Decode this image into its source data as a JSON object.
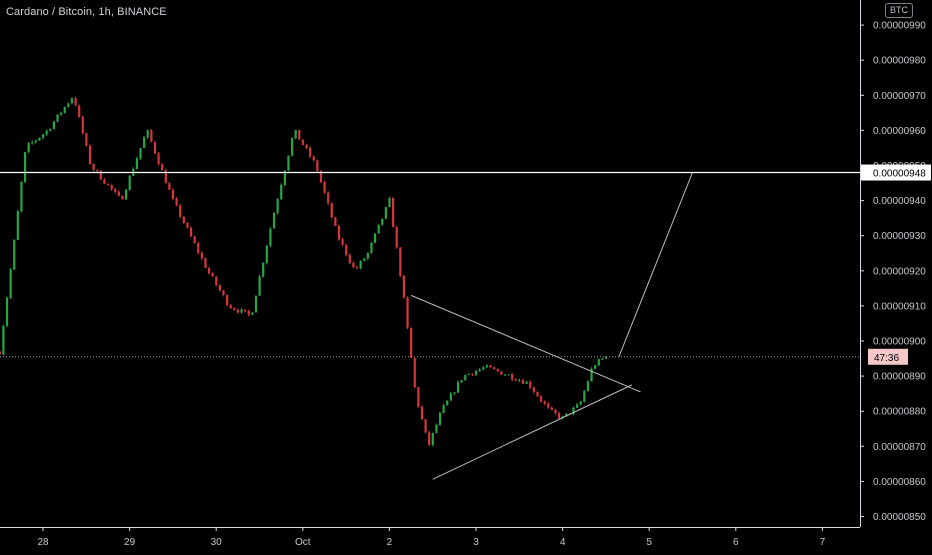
{
  "header": {
    "symbol_title": "Cardano / Bitcoin, 1h, BINANCE",
    "currency_badge": "BTC"
  },
  "colors": {
    "background": "#000000",
    "up_candle": "#26a645",
    "down_candle": "#d6363c",
    "axis_text": "#c4c7cc",
    "drawing_line": "#b9bcc2",
    "horizontal_level": "#ffffff"
  },
  "chart_data": {
    "type": "candlestick",
    "symbol": "Cardano / Bitcoin",
    "interval": "1h",
    "exchange": "BINANCE",
    "ylim": [
      8.47e-06,
      9.93e-06
    ],
    "y_ticks": [
      "0.00000850",
      "0.00000860",
      "0.00000870",
      "0.00000880",
      "0.00000890",
      "0.00000900",
      "0.00000910",
      "0.00000920",
      "0.00000930",
      "0.00000940",
      "0.00000950",
      "0.00000960",
      "0.00000970",
      "0.00000980",
      "0.00000990"
    ],
    "x_ticks": [
      "28",
      "29",
      "30",
      "Oct",
      "2",
      "3",
      "4",
      "5",
      "6",
      "7"
    ],
    "x_range_days": [
      -0.5,
      9.4
    ],
    "horizontal_level": {
      "value": 9.48e-06,
      "label": "0.00000948"
    },
    "current_price": {
      "value": 8.955e-06,
      "countdown": "47:36"
    },
    "anchors": [
      [
        -0.5,
        8.97e-06
      ],
      [
        -0.35,
        9.25e-06
      ],
      [
        -0.2,
        9.55e-06
      ],
      [
        0.05,
        9.6e-06
      ],
      [
        0.35,
        9.7e-06
      ],
      [
        0.55,
        9.5e-06
      ],
      [
        0.9,
        9.4e-06
      ],
      [
        1.2,
        9.6e-06
      ],
      [
        1.5,
        9.4e-06
      ],
      [
        1.9,
        9.2e-06
      ],
      [
        2.15,
        9.1e-06
      ],
      [
        2.4,
        9.07e-06
      ],
      [
        2.65,
        9.35e-06
      ],
      [
        2.9,
        9.6e-06
      ],
      [
        3.15,
        9.5e-06
      ],
      [
        3.4,
        9.3e-06
      ],
      [
        3.6,
        9.2e-06
      ],
      [
        3.75,
        9.25e-06
      ],
      [
        4.0,
        9.4e-06
      ],
      [
        4.15,
        9.15e-06
      ],
      [
        4.3,
        8.85e-06
      ],
      [
        4.45,
        8.7e-06
      ],
      [
        4.6,
        8.8e-06
      ],
      [
        4.85,
        8.9e-06
      ],
      [
        5.1,
        8.925e-06
      ],
      [
        5.35,
        8.905e-06
      ],
      [
        5.6,
        8.88e-06
      ],
      [
        5.85,
        8.8e-06
      ],
      [
        6.0,
        8.78e-06
      ],
      [
        6.2,
        8.82e-06
      ],
      [
        6.35,
        8.93e-06
      ],
      [
        6.5,
        8.955e-06
      ]
    ],
    "trendlines": [
      {
        "name": "triangle-upper",
        "points": [
          [
            4.25,
            9.13e-06
          ],
          [
            6.9,
            8.855e-06
          ]
        ]
      },
      {
        "name": "triangle-lower",
        "points": [
          [
            4.5,
            8.606e-06
          ],
          [
            6.8,
            8.875e-06
          ]
        ]
      },
      {
        "name": "projection",
        "points": [
          [
            6.65,
            8.955e-06
          ],
          [
            7.5,
            9.48e-06
          ]
        ]
      }
    ]
  }
}
